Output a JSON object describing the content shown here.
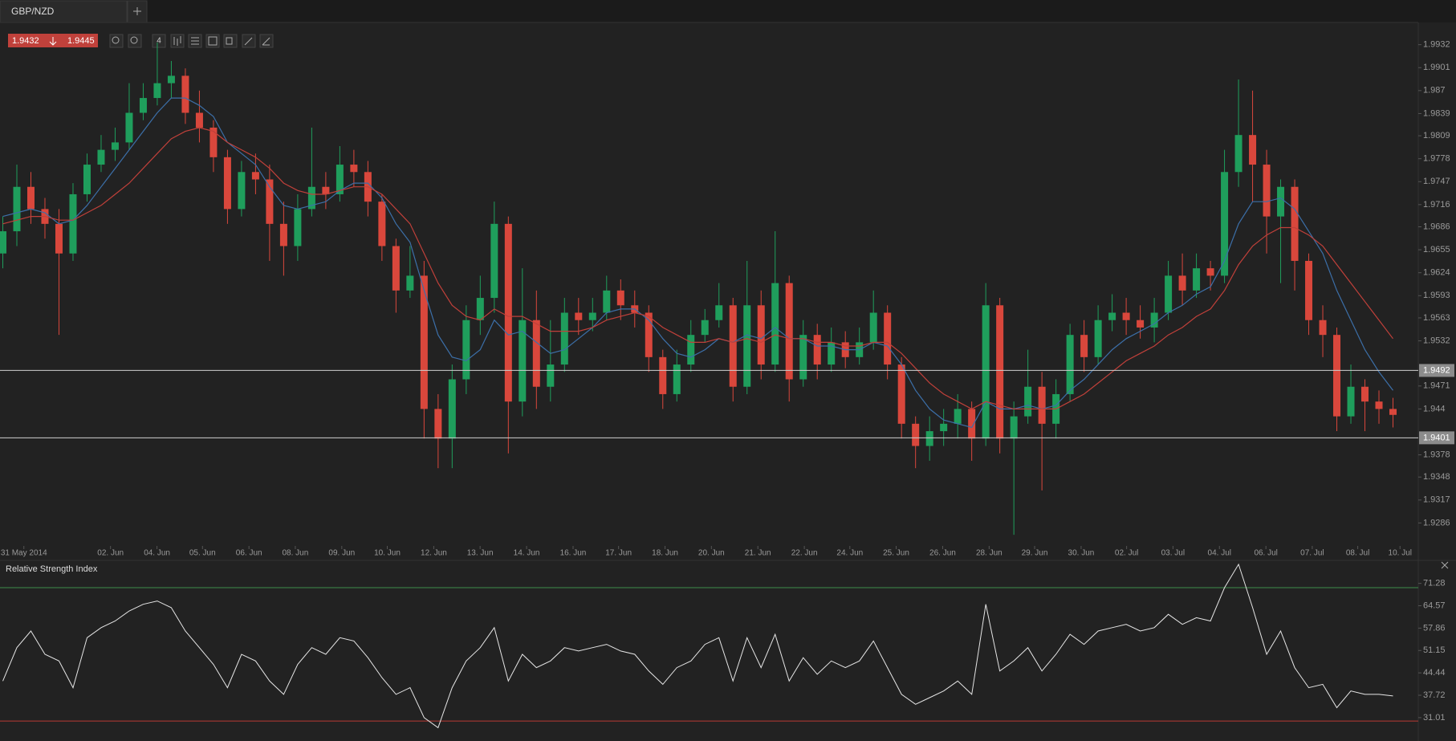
{
  "quote": {
    "bid": "1.9432",
    "ask": "1.9445"
  },
  "toolbar": {
    "period": "4"
  },
  "chart_data": [
    {
      "type": "candlestick",
      "title": "GBP/NZD",
      "open": [
        1.965,
        1.968,
        1.974,
        1.971,
        1.969,
        1.965,
        1.973,
        1.977,
        1.979,
        1.98,
        1.984,
        1.986,
        1.988,
        1.989,
        1.984,
        1.982,
        1.978,
        1.971,
        1.976,
        1.975,
        1.969,
        1.966,
        1.971,
        1.974,
        1.973,
        1.977,
        1.976,
        1.972,
        1.966,
        1.96,
        1.962,
        1.944,
        1.94,
        1.948,
        1.956,
        1.959,
        1.969,
        1.945,
        1.956,
        1.947,
        1.95,
        1.957,
        1.956,
        1.957,
        1.96,
        1.958,
        1.957,
        1.951,
        1.946,
        1.95,
        1.954,
        1.956,
        1.958,
        1.947,
        1.958,
        1.95,
        1.961,
        1.948,
        1.954,
        1.95,
        1.953,
        1.951,
        1.953,
        1.957,
        1.95,
        1.942,
        1.939,
        1.941,
        1.942,
        1.944,
        1.94,
        1.958,
        1.94,
        1.943,
        1.947,
        1.942,
        1.946,
        1.954,
        1.951,
        1.956,
        1.957,
        1.956,
        1.955,
        1.957,
        1.962,
        1.96,
        1.963,
        1.962,
        1.976,
        1.981,
        1.977,
        1.97,
        1.974,
        1.964,
        1.956,
        1.954,
        1.943,
        1.947,
        1.945,
        1.944
      ],
      "high": [
        1.97,
        1.977,
        1.976,
        1.9725,
        1.971,
        1.9745,
        1.9785,
        1.981,
        1.982,
        1.988,
        1.988,
        1.9935,
        1.991,
        1.99,
        1.987,
        1.983,
        1.979,
        1.9775,
        1.9785,
        1.977,
        1.972,
        1.973,
        1.982,
        1.976,
        1.9795,
        1.979,
        1.9775,
        1.973,
        1.967,
        1.966,
        1.964,
        1.946,
        1.95,
        1.958,
        1.962,
        1.972,
        1.97,
        1.963,
        1.96,
        1.956,
        1.959,
        1.959,
        1.959,
        1.962,
        1.9615,
        1.96,
        1.958,
        1.952,
        1.952,
        1.956,
        1.9575,
        1.961,
        1.959,
        1.964,
        1.96,
        1.968,
        1.962,
        1.956,
        1.9555,
        1.955,
        1.9545,
        1.955,
        1.96,
        1.958,
        1.951,
        1.943,
        1.943,
        1.944,
        1.946,
        1.945,
        1.961,
        1.959,
        1.945,
        1.952,
        1.949,
        1.948,
        1.9555,
        1.956,
        1.958,
        1.9595,
        1.959,
        1.958,
        1.959,
        1.964,
        1.965,
        1.965,
        1.964,
        1.979,
        1.9885,
        1.987,
        1.979,
        1.975,
        1.975,
        1.965,
        1.958,
        1.955,
        1.95,
        1.948,
        1.9465,
        1.9455
      ],
      "low": [
        1.963,
        1.966,
        1.969,
        1.967,
        1.954,
        1.964,
        1.972,
        1.976,
        1.9775,
        1.979,
        1.983,
        1.985,
        1.986,
        1.9825,
        1.98,
        1.976,
        1.969,
        1.97,
        1.973,
        1.964,
        1.962,
        1.964,
        1.97,
        1.971,
        1.972,
        1.974,
        1.97,
        1.964,
        1.957,
        1.959,
        1.94,
        1.936,
        1.936,
        1.946,
        1.954,
        1.957,
        1.938,
        1.943,
        1.944,
        1.945,
        1.949,
        1.954,
        1.9545,
        1.956,
        1.956,
        1.955,
        1.949,
        1.944,
        1.945,
        1.949,
        1.953,
        1.955,
        1.945,
        1.946,
        1.948,
        1.949,
        1.945,
        1.947,
        1.948,
        1.949,
        1.9495,
        1.95,
        1.952,
        1.948,
        1.94,
        1.936,
        1.937,
        1.939,
        1.94,
        1.937,
        1.939,
        1.938,
        1.927,
        1.942,
        1.933,
        1.94,
        1.945,
        1.949,
        1.95,
        1.9545,
        1.954,
        1.9535,
        1.953,
        1.956,
        1.958,
        1.959,
        1.96,
        1.961,
        1.974,
        1.972,
        1.965,
        1.961,
        1.96,
        1.954,
        1.951,
        1.941,
        1.942,
        1.941,
        1.942,
        1.9415
      ],
      "close": [
        1.968,
        1.974,
        1.971,
        1.969,
        1.965,
        1.973,
        1.977,
        1.979,
        1.98,
        1.984,
        1.986,
        1.988,
        1.989,
        1.984,
        1.982,
        1.978,
        1.971,
        1.976,
        1.975,
        1.969,
        1.966,
        1.971,
        1.974,
        1.973,
        1.977,
        1.976,
        1.972,
        1.966,
        1.96,
        1.962,
        1.944,
        1.94,
        1.948,
        1.956,
        1.959,
        1.969,
        1.945,
        1.956,
        1.947,
        1.95,
        1.957,
        1.956,
        1.957,
        1.96,
        1.958,
        1.957,
        1.951,
        1.946,
        1.95,
        1.954,
        1.956,
        1.958,
        1.947,
        1.958,
        1.95,
        1.961,
        1.948,
        1.954,
        1.95,
        1.953,
        1.951,
        1.953,
        1.957,
        1.95,
        1.942,
        1.939,
        1.941,
        1.942,
        1.944,
        1.94,
        1.958,
        1.94,
        1.943,
        1.947,
        1.942,
        1.946,
        1.954,
        1.951,
        1.956,
        1.957,
        1.956,
        1.955,
        1.957,
        1.962,
        1.96,
        1.963,
        1.962,
        1.976,
        1.981,
        1.977,
        1.97,
        1.974,
        1.964,
        1.956,
        1.954,
        1.943,
        1.947,
        1.945,
        1.944,
        1.9432
      ],
      "up_color": "#1f9e5c",
      "down_color": "#d9473c",
      "lines": [
        {
          "color": "#3c6fa8",
          "values": [
            1.97,
            1.9705,
            1.971,
            1.9705,
            1.969,
            1.9695,
            1.9715,
            1.974,
            1.9765,
            1.979,
            1.9815,
            1.984,
            1.986,
            1.986,
            1.985,
            1.9835,
            1.98,
            1.9785,
            1.977,
            1.974,
            1.9715,
            1.971,
            1.9715,
            1.972,
            1.9735,
            1.9745,
            1.9745,
            1.9725,
            1.969,
            1.9665,
            1.96,
            1.954,
            1.951,
            1.9505,
            1.952,
            1.956,
            1.954,
            1.9545,
            1.953,
            1.9515,
            1.952,
            1.9535,
            1.955,
            1.957,
            1.9575,
            1.9575,
            1.956,
            1.9535,
            1.9515,
            1.951,
            1.952,
            1.9535,
            1.953,
            1.954,
            1.9535,
            1.955,
            1.9535,
            1.9535,
            1.9525,
            1.9525,
            1.952,
            1.952,
            1.953,
            1.9525,
            1.95,
            1.9465,
            1.944,
            1.9425,
            1.942,
            1.9415,
            1.945,
            1.944,
            1.944,
            1.9445,
            1.944,
            1.9445,
            1.9465,
            1.948,
            1.95,
            1.952,
            1.9535,
            1.9545,
            1.9555,
            1.957,
            1.958,
            1.9595,
            1.9605,
            1.964,
            1.969,
            1.972,
            1.972,
            1.9725,
            1.971,
            1.968,
            1.965,
            1.96,
            1.956,
            1.952,
            1.949,
            1.9465
          ]
        },
        {
          "color": "#c0403a",
          "values": [
            1.969,
            1.9695,
            1.97,
            1.97,
            1.9695,
            1.9695,
            1.9705,
            1.9715,
            1.973,
            1.9745,
            1.9765,
            1.9785,
            1.9805,
            1.9815,
            1.982,
            1.9815,
            1.98,
            1.979,
            1.978,
            1.9765,
            1.9745,
            1.9735,
            1.973,
            1.973,
            1.9735,
            1.974,
            1.974,
            1.973,
            1.971,
            1.969,
            1.965,
            1.961,
            1.958,
            1.9565,
            1.956,
            1.9575,
            1.9565,
            1.9565,
            1.9555,
            1.9545,
            1.9545,
            1.9545,
            1.955,
            1.956,
            1.9565,
            1.957,
            1.9565,
            1.955,
            1.954,
            1.953,
            1.953,
            1.9535,
            1.953,
            1.9535,
            1.953,
            1.954,
            1.9535,
            1.9535,
            1.953,
            1.953,
            1.9525,
            1.9525,
            1.953,
            1.953,
            1.9515,
            1.9495,
            1.9475,
            1.946,
            1.945,
            1.944,
            1.945,
            1.9445,
            1.944,
            1.944,
            1.944,
            1.944,
            1.945,
            1.946,
            1.9475,
            1.949,
            1.9505,
            1.9515,
            1.9525,
            1.954,
            1.955,
            1.9565,
            1.9575,
            1.96,
            1.9635,
            1.966,
            1.9675,
            1.9685,
            1.9685,
            1.9675,
            1.966,
            1.9635,
            1.961,
            1.9585,
            1.956,
            1.9535
          ]
        }
      ],
      "levels": [
        1.9492,
        1.9401
      ],
      "xlim": [
        -0.2,
        100.8
      ],
      "xticks": [
        {
          "value": 1.5,
          "label": "31 May 2014"
        },
        {
          "value": 7.67,
          "label": "02. Jun"
        },
        {
          "value": 10.98,
          "label": "04. Jun"
        },
        {
          "value": 14.22,
          "label": "05. Jun"
        },
        {
          "value": 17.53,
          "label": "06. Jun"
        },
        {
          "value": 20.83,
          "label": "08. Jun"
        },
        {
          "value": 24.14,
          "label": "09. Jun"
        },
        {
          "value": 27.38,
          "label": "10. Jun"
        },
        {
          "value": 30.69,
          "label": "12. Jun"
        },
        {
          "value": 33.99,
          "label": "13. Jun"
        },
        {
          "value": 37.3,
          "label": "14. Jun"
        },
        {
          "value": 40.61,
          "label": "16. Jun"
        },
        {
          "value": 43.85,
          "label": "17. Jun"
        },
        {
          "value": 47.16,
          "label": "18. Jun"
        },
        {
          "value": 50.46,
          "label": "20. Jun"
        },
        {
          "value": 53.77,
          "label": "21. Jun"
        },
        {
          "value": 57.08,
          "label": "22. Jun"
        },
        {
          "value": 60.32,
          "label": "24. Jun"
        },
        {
          "value": 63.62,
          "label": "25. Jun"
        },
        {
          "value": 66.93,
          "label": "26. Jun"
        },
        {
          "value": 70.24,
          "label": "28. Jun"
        },
        {
          "value": 73.48,
          "label": "29. Jun"
        },
        {
          "value": 76.79,
          "label": "30. Jun"
        },
        {
          "value": 80.03,
          "label": "02. Jul"
        },
        {
          "value": 83.33,
          "label": "03. Jul"
        },
        {
          "value": 86.64,
          "label": "04. Jul"
        },
        {
          "value": 89.95,
          "label": "06. Jul"
        },
        {
          "value": 93.25,
          "label": "07. Jul"
        },
        {
          "value": 96.49,
          "label": "08. Jul"
        },
        {
          "value": 99.5,
          "label": "10. Jul"
        }
      ],
      "ylim": [
        1.9255,
        1.9962
      ],
      "yticks": [
        1.9932,
        1.9901,
        1.987,
        1.9839,
        1.9809,
        1.9778,
        1.9747,
        1.9716,
        1.9686,
        1.9655,
        1.9624,
        1.9593,
        1.9563,
        1.9532,
        1.9471,
        1.944,
        1.9378,
        1.9348,
        1.9317,
        1.9286
      ]
    },
    {
      "type": "line",
      "title": "Relative Strength Index",
      "color": "#e6e6e6",
      "values": [
        42,
        52,
        57,
        50,
        48,
        40,
        55,
        58,
        60,
        63,
        65,
        66,
        64,
        57,
        52,
        47,
        40,
        50,
        48,
        42,
        38,
        47,
        52,
        50,
        55,
        54,
        49,
        43,
        38,
        40,
        31,
        28,
        40,
        48,
        52,
        58,
        42,
        50,
        46,
        48,
        52,
        51,
        52,
        53,
        51,
        50,
        45,
        41,
        46,
        48,
        53,
        55,
        42,
        55,
        46,
        56,
        42,
        49,
        44,
        48,
        46,
        48,
        54,
        46,
        38,
        35,
        37,
        39,
        42,
        38,
        65,
        45,
        48,
        52,
        45,
        50,
        56,
        53,
        57,
        58,
        59,
        57,
        58,
        62,
        59,
        61,
        60,
        70,
        77,
        64,
        50,
        57,
        46,
        40,
        41,
        34,
        39,
        38,
        38,
        37.5
      ],
      "levels": [
        {
          "value": 70,
          "color": "#3f8f4a"
        },
        {
          "value": 30,
          "color": "#b83a33"
        }
      ],
      "xlim": [
        -0.2,
        100.8
      ],
      "ylim": [
        24,
        77.7
      ],
      "yticks": [
        71.28,
        64.57,
        57.86,
        51.15,
        44.44,
        37.72,
        31.01
      ]
    }
  ]
}
